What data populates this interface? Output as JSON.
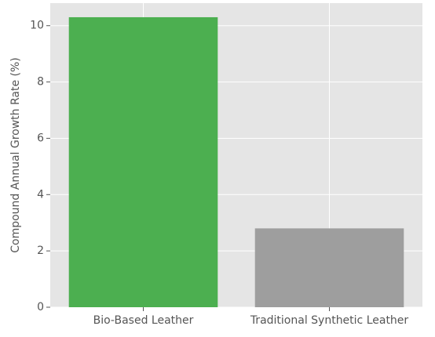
{
  "chart_data": {
    "type": "bar",
    "y_label": "Compound Annual Growth Rate (%)",
    "categories": [
      "Bio-Based Leather",
      "Traditional Synthetic Leather"
    ],
    "values": [
      10.3,
      2.8
    ],
    "colors": [
      "#4caf50",
      "#9e9e9e"
    ],
    "ylim": [
      0,
      10.8
    ],
    "yticks": [
      0,
      2,
      4,
      6,
      8,
      10
    ],
    "grid": true
  }
}
